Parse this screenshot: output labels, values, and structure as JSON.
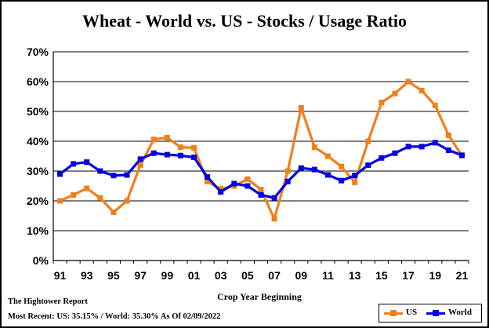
{
  "chart_data": {
    "type": "line",
    "title": "Wheat - World vs. US - Stocks / Usage Ratio",
    "xlabel": "Crop Year Beginning",
    "ylabel": "",
    "x": [
      "91",
      "92",
      "93",
      "94",
      "95",
      "96",
      "97",
      "98",
      "99",
      "00",
      "01",
      "02",
      "03",
      "04",
      "05",
      "06",
      "07",
      "08",
      "09",
      "10",
      "11",
      "12",
      "13",
      "14",
      "15",
      "16",
      "17",
      "18",
      "19",
      "20",
      "21"
    ],
    "x_tick_labels": [
      "91",
      "93",
      "95",
      "97",
      "99",
      "01",
      "03",
      "05",
      "07",
      "09",
      "11",
      "13",
      "15",
      "17",
      "19",
      "21"
    ],
    "y_ticks": [
      0,
      10,
      20,
      30,
      40,
      50,
      60,
      70
    ],
    "y_tick_labels": [
      "0%",
      "10%",
      "20%",
      "30%",
      "40%",
      "50%",
      "60%",
      "70%"
    ],
    "ylim": [
      0,
      70
    ],
    "grid": true,
    "legend_position": "bottom-right",
    "series": [
      {
        "name": "US",
        "color": "#f07f1a",
        "values": [
          20.0,
          22.0,
          24.2,
          21.0,
          16.2,
          20.0,
          32.0,
          40.6,
          41.2,
          38.0,
          37.8,
          26.5,
          24.0,
          25.0,
          27.3,
          23.8,
          14.0,
          30.0,
          51.2,
          38.0,
          35.0,
          31.5,
          26.2,
          40.0,
          53.0,
          56.0,
          60.0,
          57.0,
          52.0,
          42.0,
          35.15
        ]
      },
      {
        "name": "World",
        "color": "#0000e0",
        "values": [
          29.0,
          32.4,
          33.0,
          30.0,
          28.5,
          28.7,
          34.0,
          36.0,
          35.5,
          35.2,
          34.6,
          28.0,
          23.0,
          25.8,
          25.0,
          22.0,
          21.0,
          26.5,
          31.0,
          30.5,
          28.7,
          26.8,
          28.5,
          32.0,
          34.4,
          36.0,
          38.2,
          38.2,
          39.5,
          37.0,
          35.3
        ]
      }
    ]
  },
  "footer": {
    "source": "The Hightower Report",
    "most_recent": "Most Recent: US: 35.15% / World: 35.30% As Of 02/09/2022"
  },
  "legend": {
    "us_label": "US",
    "world_label": "World"
  }
}
